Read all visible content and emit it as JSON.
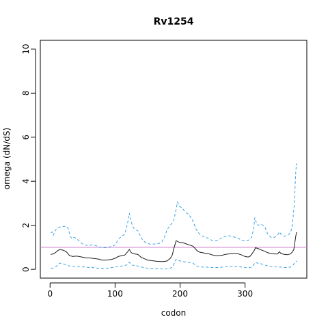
{
  "chart_data": {
    "type": "line",
    "title": "Rv1254",
    "xlabel": "codon",
    "ylabel": "omega (dN/dS)",
    "xlim": [
      -15,
      395
    ],
    "ylim": [
      -0.4,
      10.4
    ],
    "x_ticks": [
      0,
      100,
      200,
      300
    ],
    "x_tick_labels": [
      "0",
      "100",
      "200",
      "300"
    ],
    "y_ticks": [
      0,
      2,
      4,
      6,
      8,
      10
    ],
    "y_tick_labels": [
      "0",
      "2",
      "4",
      "6",
      "8",
      "10"
    ],
    "grid": false,
    "legend": "none",
    "reference_line": {
      "y": 1,
      "color": "#cc79c7"
    },
    "series": [
      {
        "style": "dashed",
        "color": "#3aa3e3",
        "points": [
          [
            1,
            1.65
          ],
          [
            3,
            1.7
          ],
          [
            5,
            1.55
          ],
          [
            8,
            1.75
          ],
          [
            10,
            1.85
          ],
          [
            15,
            1.92
          ],
          [
            20,
            1.95
          ],
          [
            25,
            1.95
          ],
          [
            28,
            1.85
          ],
          [
            30,
            1.6
          ],
          [
            33,
            1.4
          ],
          [
            36,
            1.45
          ],
          [
            40,
            1.42
          ],
          [
            45,
            1.28
          ],
          [
            50,
            1.15
          ],
          [
            55,
            1.1
          ],
          [
            60,
            1.08
          ],
          [
            65,
            1.12
          ],
          [
            70,
            1.08
          ],
          [
            75,
            1.02
          ],
          [
            80,
            0.98
          ],
          [
            85,
            0.98
          ],
          [
            90,
            1.0
          ],
          [
            95,
            1.05
          ],
          [
            100,
            1.1
          ],
          [
            105,
            1.35
          ],
          [
            110,
            1.5
          ],
          [
            115,
            1.6
          ],
          [
            118,
            1.95
          ],
          [
            120,
            2.2
          ],
          [
            122,
            2.55
          ],
          [
            124,
            2.25
          ],
          [
            127,
            1.95
          ],
          [
            130,
            1.82
          ],
          [
            135,
            1.75
          ],
          [
            140,
            1.45
          ],
          [
            143,
            1.3
          ],
          [
            148,
            1.2
          ],
          [
            153,
            1.15
          ],
          [
            158,
            1.15
          ],
          [
            163,
            1.15
          ],
          [
            168,
            1.18
          ],
          [
            172,
            1.25
          ],
          [
            176,
            1.45
          ],
          [
            180,
            1.8
          ],
          [
            185,
            2.0
          ],
          [
            190,
            2.2
          ],
          [
            193,
            2.6
          ],
          [
            196,
            3.05
          ],
          [
            199,
            2.85
          ],
          [
            203,
            2.8
          ],
          [
            208,
            2.6
          ],
          [
            213,
            2.5
          ],
          [
            218,
            2.3
          ],
          [
            221,
            2.1
          ],
          [
            225,
            1.8
          ],
          [
            230,
            1.6
          ],
          [
            235,
            1.5
          ],
          [
            240,
            1.45
          ],
          [
            245,
            1.38
          ],
          [
            250,
            1.3
          ],
          [
            255,
            1.3
          ],
          [
            260,
            1.35
          ],
          [
            265,
            1.45
          ],
          [
            270,
            1.5
          ],
          [
            275,
            1.52
          ],
          [
            280,
            1.5
          ],
          [
            285,
            1.45
          ],
          [
            290,
            1.4
          ],
          [
            295,
            1.32
          ],
          [
            300,
            1.3
          ],
          [
            305,
            1.32
          ],
          [
            310,
            1.45
          ],
          [
            313,
            1.8
          ],
          [
            315,
            2.35
          ],
          [
            317,
            2.15
          ],
          [
            320,
            2.0
          ],
          [
            325,
            2.05
          ],
          [
            330,
            1.95
          ],
          [
            335,
            1.6
          ],
          [
            340,
            1.45
          ],
          [
            345,
            1.45
          ],
          [
            350,
            1.55
          ],
          [
            353,
            1.7
          ],
          [
            355,
            1.6
          ],
          [
            360,
            1.5
          ],
          [
            365,
            1.55
          ],
          [
            368,
            1.6
          ],
          [
            370,
            1.7
          ],
          [
            372,
            1.85
          ],
          [
            374,
            2.4
          ],
          [
            376,
            3.0
          ],
          [
            377,
            3.8
          ],
          [
            378,
            4.4
          ],
          [
            379,
            4.8
          ],
          [
            380,
            4.72
          ]
        ]
      },
      {
        "style": "solid",
        "color": "#1a1a1a",
        "points": [
          [
            1,
            0.68
          ],
          [
            5,
            0.7
          ],
          [
            8,
            0.75
          ],
          [
            12,
            0.85
          ],
          [
            15,
            0.9
          ],
          [
            20,
            0.87
          ],
          [
            25,
            0.8
          ],
          [
            30,
            0.62
          ],
          [
            35,
            0.58
          ],
          [
            40,
            0.6
          ],
          [
            45,
            0.58
          ],
          [
            50,
            0.55
          ],
          [
            55,
            0.52
          ],
          [
            60,
            0.52
          ],
          [
            65,
            0.5
          ],
          [
            70,
            0.48
          ],
          [
            75,
            0.46
          ],
          [
            80,
            0.42
          ],
          [
            85,
            0.42
          ],
          [
            90,
            0.43
          ],
          [
            95,
            0.45
          ],
          [
            100,
            0.5
          ],
          [
            105,
            0.58
          ],
          [
            110,
            0.62
          ],
          [
            115,
            0.65
          ],
          [
            118,
            0.75
          ],
          [
            120,
            0.82
          ],
          [
            122,
            0.9
          ],
          [
            125,
            0.75
          ],
          [
            130,
            0.7
          ],
          [
            135,
            0.68
          ],
          [
            140,
            0.55
          ],
          [
            145,
            0.48
          ],
          [
            150,
            0.42
          ],
          [
            155,
            0.4
          ],
          [
            160,
            0.38
          ],
          [
            165,
            0.36
          ],
          [
            170,
            0.35
          ],
          [
            175,
            0.35
          ],
          [
            180,
            0.38
          ],
          [
            185,
            0.5
          ],
          [
            188,
            0.65
          ],
          [
            190,
            0.9
          ],
          [
            192,
            1.1
          ],
          [
            194,
            1.3
          ],
          [
            197,
            1.25
          ],
          [
            200,
            1.22
          ],
          [
            205,
            1.2
          ],
          [
            210,
            1.15
          ],
          [
            215,
            1.1
          ],
          [
            220,
            1.05
          ],
          [
            223,
            0.95
          ],
          [
            226,
            0.85
          ],
          [
            230,
            0.78
          ],
          [
            235,
            0.75
          ],
          [
            240,
            0.72
          ],
          [
            245,
            0.7
          ],
          [
            250,
            0.65
          ],
          [
            255,
            0.62
          ],
          [
            260,
            0.62
          ],
          [
            265,
            0.64
          ],
          [
            270,
            0.68
          ],
          [
            275,
            0.7
          ],
          [
            280,
            0.72
          ],
          [
            285,
            0.72
          ],
          [
            290,
            0.7
          ],
          [
            295,
            0.65
          ],
          [
            300,
            0.58
          ],
          [
            305,
            0.56
          ],
          [
            308,
            0.6
          ],
          [
            311,
            0.72
          ],
          [
            314,
            0.85
          ],
          [
            316,
            0.98
          ],
          [
            319,
            0.95
          ],
          [
            322,
            0.92
          ],
          [
            325,
            0.88
          ],
          [
            330,
            0.82
          ],
          [
            335,
            0.75
          ],
          [
            340,
            0.72
          ],
          [
            345,
            0.7
          ],
          [
            350,
            0.7
          ],
          [
            353,
            0.8
          ],
          [
            355,
            0.72
          ],
          [
            360,
            0.68
          ],
          [
            365,
            0.66
          ],
          [
            370,
            0.7
          ],
          [
            373,
            0.8
          ],
          [
            375,
            0.9
          ],
          [
            376,
            1.1
          ],
          [
            377,
            1.3
          ],
          [
            378,
            1.5
          ],
          [
            379,
            1.65
          ],
          [
            380,
            1.68
          ]
        ]
      },
      {
        "style": "dashed",
        "color": "#3aa3e3",
        "points": [
          [
            1,
            0.05
          ],
          [
            5,
            0.06
          ],
          [
            8,
            0.1
          ],
          [
            12,
            0.2
          ],
          [
            15,
            0.28
          ],
          [
            20,
            0.25
          ],
          [
            25,
            0.2
          ],
          [
            30,
            0.15
          ],
          [
            35,
            0.13
          ],
          [
            40,
            0.12
          ],
          [
            45,
            0.12
          ],
          [
            50,
            0.11
          ],
          [
            55,
            0.1
          ],
          [
            60,
            0.08
          ],
          [
            65,
            0.08
          ],
          [
            70,
            0.06
          ],
          [
            75,
            0.05
          ],
          [
            80,
            0.05
          ],
          [
            85,
            0.05
          ],
          [
            90,
            0.06
          ],
          [
            95,
            0.08
          ],
          [
            100,
            0.1
          ],
          [
            105,
            0.13
          ],
          [
            110,
            0.15
          ],
          [
            115,
            0.16
          ],
          [
            120,
            0.25
          ],
          [
            122,
            0.32
          ],
          [
            125,
            0.2
          ],
          [
            130,
            0.17
          ],
          [
            135,
            0.15
          ],
          [
            140,
            0.1
          ],
          [
            145,
            0.08
          ],
          [
            150,
            0.05
          ],
          [
            155,
            0.04
          ],
          [
            160,
            0.03
          ],
          [
            165,
            0.03
          ],
          [
            170,
            0.02
          ],
          [
            175,
            0.02
          ],
          [
            180,
            0.02
          ],
          [
            185,
            0.05
          ],
          [
            188,
            0.1
          ],
          [
            190,
            0.18
          ],
          [
            192,
            0.35
          ],
          [
            194,
            0.45
          ],
          [
            197,
            0.4
          ],
          [
            200,
            0.38
          ],
          [
            205,
            0.35
          ],
          [
            210,
            0.32
          ],
          [
            215,
            0.3
          ],
          [
            220,
            0.28
          ],
          [
            223,
            0.2
          ],
          [
            226,
            0.15
          ],
          [
            230,
            0.12
          ],
          [
            235,
            0.1
          ],
          [
            240,
            0.1
          ],
          [
            245,
            0.09
          ],
          [
            250,
            0.08
          ],
          [
            255,
            0.08
          ],
          [
            260,
            0.08
          ],
          [
            265,
            0.1
          ],
          [
            270,
            0.12
          ],
          [
            275,
            0.12
          ],
          [
            280,
            0.13
          ],
          [
            285,
            0.13
          ],
          [
            290,
            0.12
          ],
          [
            295,
            0.1
          ],
          [
            300,
            0.08
          ],
          [
            305,
            0.07
          ],
          [
            310,
            0.1
          ],
          [
            313,
            0.2
          ],
          [
            316,
            0.32
          ],
          [
            319,
            0.28
          ],
          [
            322,
            0.26
          ],
          [
            325,
            0.25
          ],
          [
            330,
            0.2
          ],
          [
            335,
            0.15
          ],
          [
            340,
            0.13
          ],
          [
            345,
            0.12
          ],
          [
            350,
            0.1
          ],
          [
            355,
            0.1
          ],
          [
            360,
            0.08
          ],
          [
            365,
            0.08
          ],
          [
            370,
            0.1
          ],
          [
            372,
            0.15
          ],
          [
            374,
            0.2
          ],
          [
            376,
            0.28
          ],
          [
            378,
            0.35
          ],
          [
            380,
            0.38
          ]
        ]
      }
    ]
  }
}
